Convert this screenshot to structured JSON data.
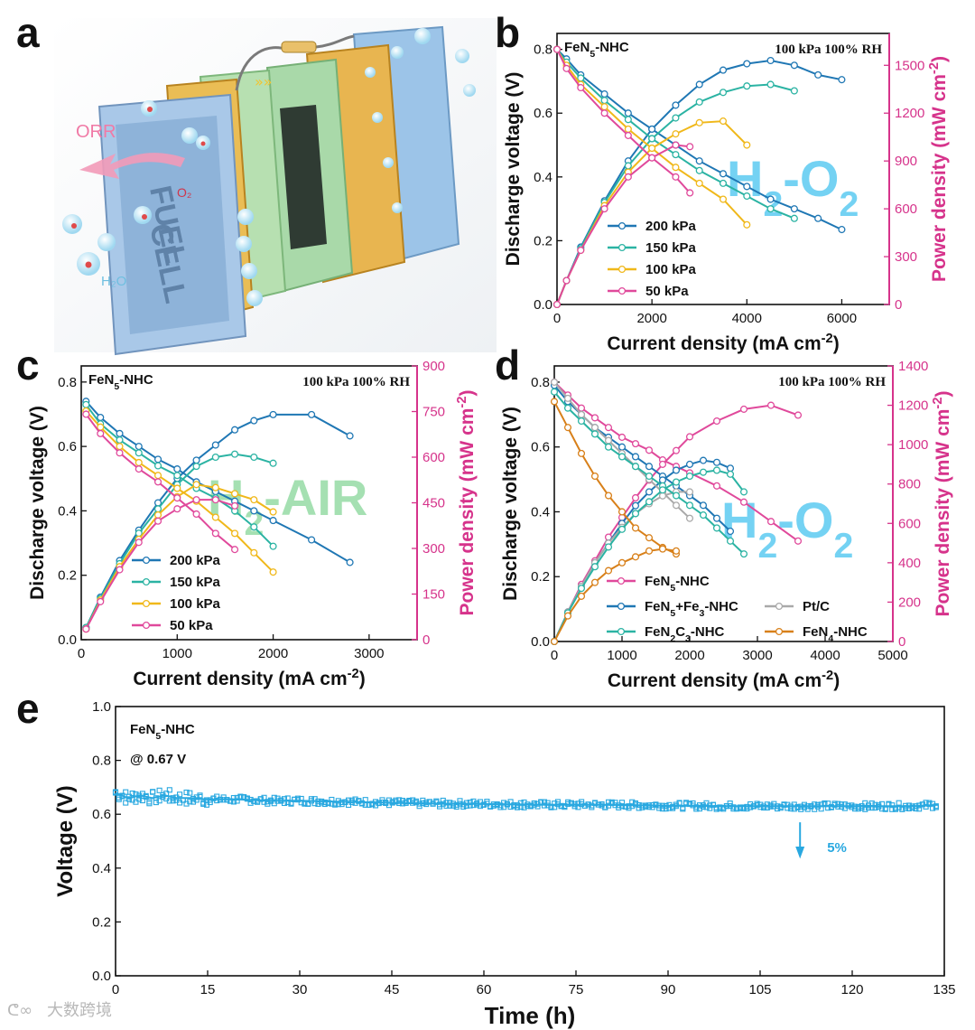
{
  "colors": {
    "c200": "#1f77b4",
    "c150": "#2bb3a3",
    "c100": "#f0b81a",
    "c50": "#e0499b",
    "pink_axis": "#d6338b",
    "stab": "#29a8e0",
    "fen4": "#d8801a",
    "ptc": "#a9a9a9"
  },
  "panel_a": {
    "letter": "a",
    "labels": [
      "ORR",
      "O₂",
      "H₂O"
    ],
    "plate_text": [
      "FUEL",
      "CELL"
    ]
  },
  "chart_data": [
    {
      "panel": "b",
      "type": "line",
      "sample": "FeN5-NHC",
      "conditions": "100 kPa 100% RH",
      "gas": "H2-O2",
      "xlabel": "Current density (mA cm-2)",
      "ylabel": "Discharge voltage (V)",
      "y2label": "Power density (mW cm-2)",
      "xlim": [
        0,
        7000
      ],
      "ylim": [
        0,
        0.85
      ],
      "y2lim": [
        0,
        1700
      ],
      "xticks": [
        0,
        2000,
        4000,
        6000
      ],
      "yticks": [
        0.0,
        0.2,
        0.4,
        0.6,
        0.8
      ],
      "y2ticks": [
        0,
        300,
        600,
        900,
        1200,
        1500
      ],
      "legend": [
        "200 kPa",
        "150 kPa",
        "100 kPa",
        "50 kPa"
      ],
      "series": [
        {
          "name": "200 kPa",
          "color": "#1f77b4",
          "x": [
            0,
            200,
            500,
            1000,
            1500,
            2000,
            2500,
            3000,
            3500,
            4000,
            4500,
            5000,
            5500,
            6000
          ],
          "voltage": [
            0.8,
            0.77,
            0.72,
            0.66,
            0.6,
            0.55,
            0.5,
            0.45,
            0.41,
            0.37,
            0.33,
            0.3,
            0.27,
            0.235
          ],
          "power": [
            0,
            150,
            360,
            650,
            900,
            1100,
            1250,
            1380,
            1470,
            1510,
            1530,
            1500,
            1440,
            1410
          ]
        },
        {
          "name": "150 kPa",
          "color": "#2bb3a3",
          "x": [
            0,
            200,
            500,
            1000,
            1500,
            2000,
            2500,
            3000,
            3500,
            4000,
            4500,
            5000
          ],
          "voltage": [
            0.8,
            0.76,
            0.71,
            0.64,
            0.58,
            0.52,
            0.47,
            0.42,
            0.38,
            0.34,
            0.3,
            0.27
          ],
          "power": [
            0,
            150,
            350,
            640,
            870,
            1040,
            1170,
            1270,
            1330,
            1370,
            1380,
            1340
          ]
        },
        {
          "name": "100 kPa",
          "color": "#f0b81a",
          "x": [
            0,
            200,
            500,
            1000,
            1500,
            2000,
            2500,
            3000,
            3500,
            4000
          ],
          "voltage": [
            0.8,
            0.75,
            0.69,
            0.62,
            0.55,
            0.49,
            0.43,
            0.38,
            0.33,
            0.25
          ],
          "power": [
            0,
            150,
            340,
            620,
            830,
            980,
            1070,
            1140,
            1150,
            1000
          ]
        },
        {
          "name": "50 kPa",
          "color": "#e0499b",
          "x": [
            0,
            200,
            500,
            1000,
            1500,
            2000,
            2500,
            2800
          ],
          "voltage": [
            0.8,
            0.74,
            0.68,
            0.6,
            0.53,
            0.46,
            0.4,
            0.35
          ],
          "power": [
            0,
            150,
            340,
            600,
            800,
            920,
            1000,
            990
          ]
        }
      ]
    },
    {
      "panel": "c",
      "type": "line",
      "sample": "FeN5-NHC",
      "conditions": "100 kPa 100% RH",
      "gas": "H2-AIR",
      "xlabel": "Current density (mA cm-2)",
      "ylabel": "Discharge voltage (V)",
      "y2label": "Power density (mW cm-2)",
      "xlim": [
        0,
        3500
      ],
      "ylim": [
        0,
        0.85
      ],
      "y2lim": [
        0,
        900
      ],
      "xticks": [
        0,
        1000,
        2000,
        3000
      ],
      "yticks": [
        0.0,
        0.2,
        0.4,
        0.6,
        0.8
      ],
      "y2ticks": [
        0,
        150,
        300,
        450,
        600,
        750,
        900
      ],
      "legend": [
        "200 kPa",
        "150 kPa",
        "100 kPa",
        "50 kPa"
      ],
      "series": [
        {
          "name": "200 kPa",
          "color": "#1f77b4",
          "x": [
            50,
            200,
            400,
            600,
            800,
            1000,
            1200,
            1400,
            1600,
            1800,
            2000,
            2400,
            2800
          ],
          "voltage": [
            0.74,
            0.69,
            0.64,
            0.6,
            0.56,
            0.53,
            0.49,
            0.46,
            0.43,
            0.4,
            0.37,
            0.31,
            0.24
          ],
          "power": [
            40,
            140,
            260,
            360,
            450,
            530,
            590,
            640,
            690,
            720,
            740,
            740,
            670
          ]
        },
        {
          "name": "150 kPa",
          "color": "#2bb3a3",
          "x": [
            50,
            200,
            400,
            600,
            800,
            1000,
            1200,
            1400,
            1600,
            1800,
            2000
          ],
          "voltage": [
            0.73,
            0.67,
            0.62,
            0.58,
            0.54,
            0.51,
            0.47,
            0.44,
            0.4,
            0.35,
            0.29
          ],
          "power": [
            40,
            135,
            250,
            350,
            430,
            510,
            570,
            600,
            610,
            600,
            580
          ]
        },
        {
          "name": "100 kPa",
          "color": "#f0b81a",
          "x": [
            50,
            200,
            400,
            600,
            800,
            1000,
            1200,
            1400,
            1600,
            1800,
            2000
          ],
          "voltage": [
            0.71,
            0.66,
            0.6,
            0.55,
            0.51,
            0.47,
            0.43,
            0.38,
            0.33,
            0.27,
            0.21
          ],
          "power": [
            35,
            130,
            240,
            330,
            410,
            470,
            510,
            500,
            480,
            460,
            420
          ]
        },
        {
          "name": "50 kPa",
          "color": "#e0499b",
          "x": [
            50,
            200,
            400,
            600,
            800,
            1000,
            1200,
            1400,
            1600
          ],
          "voltage": [
            0.7,
            0.64,
            0.58,
            0.53,
            0.49,
            0.44,
            0.39,
            0.33,
            0.28
          ],
          "power": [
            35,
            125,
            230,
            320,
            390,
            430,
            460,
            460,
            440
          ]
        }
      ]
    },
    {
      "panel": "d",
      "type": "line",
      "conditions": "100 kPa 100% RH",
      "gas": "H2-O2",
      "xlabel": "Current density (mA cm-2)",
      "ylabel": "Discharge voltage (V)",
      "y2label": "Power density (mW cm-2)",
      "xlim": [
        0,
        5000
      ],
      "ylim": [
        0,
        0.85
      ],
      "y2lim": [
        0,
        1400
      ],
      "xticks": [
        0,
        1000,
        2000,
        3000,
        4000,
        5000
      ],
      "yticks": [
        0.0,
        0.2,
        0.4,
        0.6,
        0.8
      ],
      "y2ticks": [
        0,
        200,
        400,
        600,
        800,
        1000,
        1200,
        1400
      ],
      "legend": [
        "FeN5-NHC",
        "FeN5+Fe3-NHC",
        "Pt/C",
        "FeN2C3-NHC",
        "FeN4-NHC"
      ],
      "series": [
        {
          "name": "FeN5-NHC",
          "color": "#e0499b",
          "x": [
            0,
            200,
            400,
            600,
            800,
            1000,
            1200,
            1400,
            1600,
            1800,
            2000,
            2400,
            2800,
            3200,
            3600
          ],
          "voltage": [
            0.8,
            0.76,
            0.72,
            0.69,
            0.66,
            0.63,
            0.61,
            0.59,
            0.56,
            0.54,
            0.52,
            0.48,
            0.43,
            0.37,
            0.31
          ],
          "power": [
            0,
            150,
            290,
            410,
            530,
            630,
            730,
            820,
            900,
            970,
            1040,
            1120,
            1180,
            1200,
            1150
          ]
        },
        {
          "name": "FeN5+Fe3-NHC",
          "color": "#1f77b4",
          "x": [
            0,
            200,
            400,
            600,
            800,
            1000,
            1200,
            1400,
            1600,
            1800,
            2000,
            2200,
            2400,
            2600
          ],
          "voltage": [
            0.79,
            0.74,
            0.7,
            0.66,
            0.63,
            0.6,
            0.57,
            0.54,
            0.51,
            0.48,
            0.45,
            0.42,
            0.38,
            0.34
          ],
          "power": [
            0,
            150,
            280,
            400,
            500,
            600,
            690,
            760,
            820,
            870,
            900,
            920,
            910,
            880
          ]
        },
        {
          "name": "Pt/C",
          "color": "#a9a9a9",
          "x": [
            0,
            200,
            400,
            600,
            800,
            1000,
            1200,
            1400,
            1600,
            1800,
            2000
          ],
          "voltage": [
            0.8,
            0.75,
            0.7,
            0.66,
            0.62,
            0.58,
            0.54,
            0.5,
            0.46,
            0.42,
            0.38
          ],
          "power": [
            0,
            150,
            280,
            400,
            500,
            580,
            650,
            700,
            740,
            760,
            760
          ]
        },
        {
          "name": "FeN2C3-NHC",
          "color": "#2bb3a3",
          "x": [
            0,
            200,
            400,
            600,
            800,
            1000,
            1200,
            1400,
            1600,
            1800,
            2000,
            2200,
            2400,
            2600,
            2800
          ],
          "voltage": [
            0.77,
            0.72,
            0.68,
            0.64,
            0.6,
            0.57,
            0.54,
            0.51,
            0.48,
            0.45,
            0.42,
            0.39,
            0.35,
            0.31,
            0.27
          ],
          "power": [
            0,
            145,
            270,
            380,
            480,
            570,
            650,
            710,
            770,
            810,
            840,
            860,
            870,
            850,
            760
          ]
        },
        {
          "name": "FeN4-NHC",
          "color": "#d8801a",
          "x": [
            0,
            200,
            400,
            600,
            800,
            1000,
            1200,
            1400,
            1600,
            1800
          ],
          "voltage": [
            0.74,
            0.66,
            0.58,
            0.51,
            0.45,
            0.4,
            0.35,
            0.32,
            0.29,
            0.27
          ],
          "power": [
            0,
            130,
            230,
            300,
            360,
            400,
            430,
            460,
            470,
            460
          ]
        }
      ]
    },
    {
      "panel": "e",
      "type": "line",
      "sample": "FeN5-NHC",
      "hold": "@ 0.67 V",
      "annotation": "5%",
      "xlabel": "Time (h)",
      "ylabel": "Voltage (V)",
      "xlim": [
        0,
        135
      ],
      "ylim": [
        0.0,
        1.0
      ],
      "xticks": [
        0,
        15,
        30,
        45,
        60,
        75,
        90,
        105,
        120,
        135
      ],
      "yticks": [
        0.0,
        0.2,
        0.4,
        0.6,
        0.8,
        1.0
      ],
      "series": [
        {
          "name": "FeN5-NHC",
          "color": "#29a8e0",
          "x": [
            0,
            2,
            4,
            6,
            8,
            10,
            12,
            15,
            20,
            25,
            30,
            40,
            50,
            60,
            70,
            80,
            90,
            100,
            110,
            120,
            130,
            134
          ],
          "voltage": [
            0.68,
            0.66,
            0.67,
            0.66,
            0.67,
            0.66,
            0.66,
            0.655,
            0.655,
            0.65,
            0.65,
            0.645,
            0.64,
            0.638,
            0.635,
            0.635,
            0.632,
            0.63,
            0.63,
            0.63,
            0.63,
            0.635
          ]
        }
      ]
    }
  ],
  "watermark": "大数跨境"
}
